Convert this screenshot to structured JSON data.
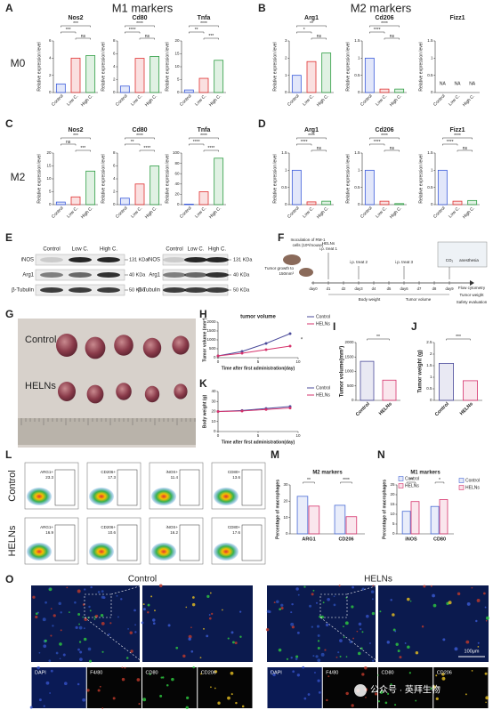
{
  "groups": [
    "Control",
    "Low C.",
    "High C."
  ],
  "group_colors": [
    "#3b5bdb",
    "#e03131",
    "#2f9e44"
  ],
  "ylabel": "Relative expression level",
  "A": {
    "label": "A",
    "title": "M1 markers",
    "row": "M0",
    "charts": [
      {
        "name": "Nos2",
        "values": [
          1,
          4,
          4.3
        ],
        "ylim": [
          0,
          6
        ],
        "yticks": [
          0,
          2,
          4,
          6
        ],
        "sig": [
          "***",
          "***",
          "ns"
        ]
      },
      {
        "name": "Cd80",
        "values": [
          1,
          5.3,
          5.6
        ],
        "ylim": [
          0,
          8
        ],
        "yticks": [
          0,
          2,
          4,
          6,
          8
        ],
        "sig": [
          "****",
          "****",
          "ns"
        ]
      },
      {
        "name": "Tnfa",
        "values": [
          1,
          5.5,
          12.5
        ],
        "ylim": [
          0,
          20
        ],
        "yticks": [
          0,
          5,
          10,
          15,
          20
        ],
        "sig": [
          "****",
          "**",
          "***"
        ]
      }
    ]
  },
  "B": {
    "label": "B",
    "title": "M2 markers",
    "charts": [
      {
        "name": "Arg1",
        "values": [
          1,
          1.8,
          2.3
        ],
        "ylim": [
          0,
          3
        ],
        "yticks": [
          0,
          1,
          2,
          3
        ],
        "sig": [
          "**",
          "*",
          "ns"
        ]
      },
      {
        "name": "Cd206",
        "values": [
          1,
          0.1,
          0.1
        ],
        "ylim": [
          0,
          1.5
        ],
        "yticks": [
          0,
          0.5,
          1,
          1.5
        ],
        "sig": [
          "****",
          "****",
          "ns"
        ]
      },
      {
        "name": "Fizz1",
        "values": [
          null,
          null,
          null
        ],
        "value_labels": [
          "NA",
          "NA",
          "NA"
        ],
        "ylim": [
          0,
          1.5
        ],
        "yticks": [
          0,
          0.5,
          1,
          1.5
        ]
      }
    ]
  },
  "C": {
    "label": "C",
    "row": "M2",
    "charts": [
      {
        "name": "Nos2",
        "values": [
          1,
          3,
          13
        ],
        "ylim": [
          0,
          20
        ],
        "yticks": [
          0,
          5,
          10,
          15,
          20
        ],
        "sig": [
          "***",
          "ns",
          "***"
        ]
      },
      {
        "name": "Cd80",
        "values": [
          1,
          3.2,
          6
        ],
        "ylim": [
          0,
          8
        ],
        "yticks": [
          0,
          2,
          4,
          6,
          8
        ],
        "sig": [
          "****",
          "**",
          "****"
        ]
      },
      {
        "name": "Tnfa",
        "values": [
          1,
          25,
          90
        ],
        "ylim": [
          0,
          100
        ],
        "yticks": [
          0,
          20,
          40,
          60,
          80,
          100
        ],
        "sig": [
          "****",
          "****",
          "****"
        ]
      }
    ]
  },
  "D": {
    "label": "D",
    "charts": [
      {
        "name": "Arg1",
        "values": [
          1,
          0.08,
          0.1
        ],
        "ylim": [
          0,
          1.5
        ],
        "yticks": [
          0,
          0.5,
          1,
          1.5
        ],
        "sig": [
          "****",
          "****",
          "ns"
        ]
      },
      {
        "name": "Cd206",
        "values": [
          1,
          0.1,
          0.03
        ],
        "ylim": [
          0,
          1.5
        ],
        "yticks": [
          0,
          0.5,
          1,
          1.5
        ],
        "sig": [
          "****",
          "****",
          "ns"
        ]
      },
      {
        "name": "Fizz1",
        "values": [
          1,
          0.1,
          0.12
        ],
        "ylim": [
          0,
          1.5
        ],
        "yticks": [
          0,
          0.5,
          1,
          1.5
        ],
        "sig": [
          "****",
          "****",
          "ns"
        ]
      }
    ]
  },
  "E": {
    "label": "E",
    "left": {
      "lanes": [
        "Control",
        "Low C.",
        "High C."
      ],
      "rows": [
        "iNOS",
        "Arg1",
        "β-Tubulin"
      ],
      "sizes": [
        "131 KDa",
        "40 KDa",
        "50 KDa"
      ]
    },
    "right": {
      "lanes": [
        "Control",
        "Low C.",
        "High C."
      ],
      "rows": [
        "iNOS",
        "Arg1",
        "β-Tubulin"
      ],
      "sizes": [
        "131 KDa",
        "40 KDa",
        "50 KDa"
      ]
    }
  },
  "F": {
    "label": "F",
    "inoculation": [
      "Inoculation of RM-1",
      "cells (10⁶/mouse)"
    ],
    "growth": [
      "Tumor growth to",
      "150mm³"
    ],
    "treat1": [
      "HELNs",
      "i.p. treat 1"
    ],
    "treat2": "i.p. treat 2",
    "treat3": "i.p. treat 3",
    "days": [
      "day0",
      "d1",
      "d2",
      "day3",
      "d4",
      "d5",
      "day6",
      "d7",
      "d8",
      "day9"
    ],
    "co2": "CO₂",
    "anesthesia": "anesthesia",
    "body_weight": "Body weight",
    "tumor_volume": "Tumor volume",
    "endpoints": [
      "Flow cytometry",
      "Tumor weight",
      "Safety evaluation"
    ]
  },
  "G": {
    "label": "G",
    "rows": [
      "Control",
      "HELNs"
    ]
  },
  "H": {
    "label": "H",
    "title": "tumor volume",
    "ylabel": "Tumor volume (mm³)",
    "xlabel": "Time after first administration(day)",
    "x": [
      0,
      3,
      6,
      9
    ],
    "xlim": [
      0,
      10
    ],
    "xticks": [
      0,
      5,
      10
    ],
    "ylim": [
      0,
      2000
    ],
    "yticks": [
      0,
      500,
      1000,
      1500,
      2000
    ],
    "sig": "*",
    "series": [
      {
        "name": "Control",
        "color": "#4b4b9b",
        "values": [
          100,
          350,
          800,
          1350
        ]
      },
      {
        "name": "HELNs",
        "color": "#d6336c",
        "values": [
          100,
          250,
          450,
          650
        ]
      }
    ]
  },
  "K": {
    "label": "K",
    "ylabel": "Body weight (g)",
    "xlabel": "Time after first administration(day)",
    "x": [
      0,
      3,
      6,
      9
    ],
    "xlim": [
      0,
      10
    ],
    "xticks": [
      0,
      5,
      10
    ],
    "ylim": [
      0,
      40
    ],
    "yticks": [
      0,
      10,
      20,
      30,
      40
    ],
    "series": [
      {
        "name": "Control",
        "color": "#4b4b9b",
        "values": [
          20,
          21,
          23,
          25
        ]
      },
      {
        "name": "HELNs",
        "color": "#d6336c",
        "values": [
          20,
          20.5,
          22,
          23.5
        ]
      }
    ]
  },
  "I": {
    "label": "I",
    "ylabel": "Tumor volume(mm³)",
    "categories": [
      "Control",
      "HELNs"
    ],
    "colors": [
      "#4b4b9b",
      "#d6336c"
    ],
    "values": [
      1350,
      700
    ],
    "ylim": [
      0,
      2000
    ],
    "yticks": [
      0,
      500,
      1000,
      1500,
      2000
    ],
    "sig": "**"
  },
  "J": {
    "label": "J",
    "ylabel": "Tumor weight (g)",
    "categories": [
      "Control",
      "HELNs"
    ],
    "colors": [
      "#4b4b9b",
      "#d6336c"
    ],
    "values": [
      1.6,
      0.85
    ],
    "ylim": [
      0,
      2.5
    ],
    "yticks": [
      0,
      0.5,
      1,
      1.5,
      2,
      2.5
    ],
    "sig": "***"
  },
  "L": {
    "label": "L",
    "rows": [
      {
        "name": "Control",
        "gates": [
          {
            "marker": "ARG1+",
            "percent": 23.3
          },
          {
            "marker": "CD206+",
            "percent": 17.3
          },
          {
            "marker": "iNOS+",
            "percent": 11.4
          },
          {
            "marker": "CD80+",
            "percent": 13.6
          }
        ]
      },
      {
        "name": "HELNs",
        "gates": [
          {
            "marker": "ARG1+",
            "percent": 16.9
          },
          {
            "marker": "CD206+",
            "percent": 10.6
          },
          {
            "marker": "iNOS+",
            "percent": 16.2
          },
          {
            "marker": "CD80+",
            "percent": 17.6
          }
        ]
      }
    ]
  },
  "M": {
    "label": "M",
    "title": "M2 markers",
    "ylabel": "Percentage of macrophages",
    "categories": [
      "ARG1",
      "CD206"
    ],
    "ylim": [
      0,
      30
    ],
    "yticks": [
      0,
      10,
      20,
      30
    ],
    "sig": [
      "**",
      "****"
    ],
    "series": [
      {
        "color": "#4b6cd6",
        "values": [
          23,
          17.5
        ]
      },
      {
        "color": "#d6336c",
        "values": [
          17,
          10.5
        ]
      }
    ]
  },
  "N": {
    "label": "N",
    "title": "M1 markers",
    "ylabel": "Percentage of macrophages",
    "categories": [
      "iNOS",
      "CD80"
    ],
    "ylim": [
      0,
      25
    ],
    "yticks": [
      0,
      5,
      10,
      15,
      20,
      25
    ],
    "sig": [
      "**",
      "*"
    ],
    "series": [
      {
        "name": "Control",
        "color": "#4b6cd6",
        "values": [
          11.5,
          14
        ]
      },
      {
        "name": "HELNs",
        "color": "#d6336c",
        "values": [
          16.5,
          17.5
        ]
      }
    ]
  },
  "O": {
    "label": "O",
    "groups": [
      "Control",
      "HELNs"
    ],
    "channels": [
      "DAPI",
      "F4/80",
      "CD80",
      "CD206"
    ],
    "scale": "100μm"
  },
  "watermark": "公众号 · 英拜生物"
}
